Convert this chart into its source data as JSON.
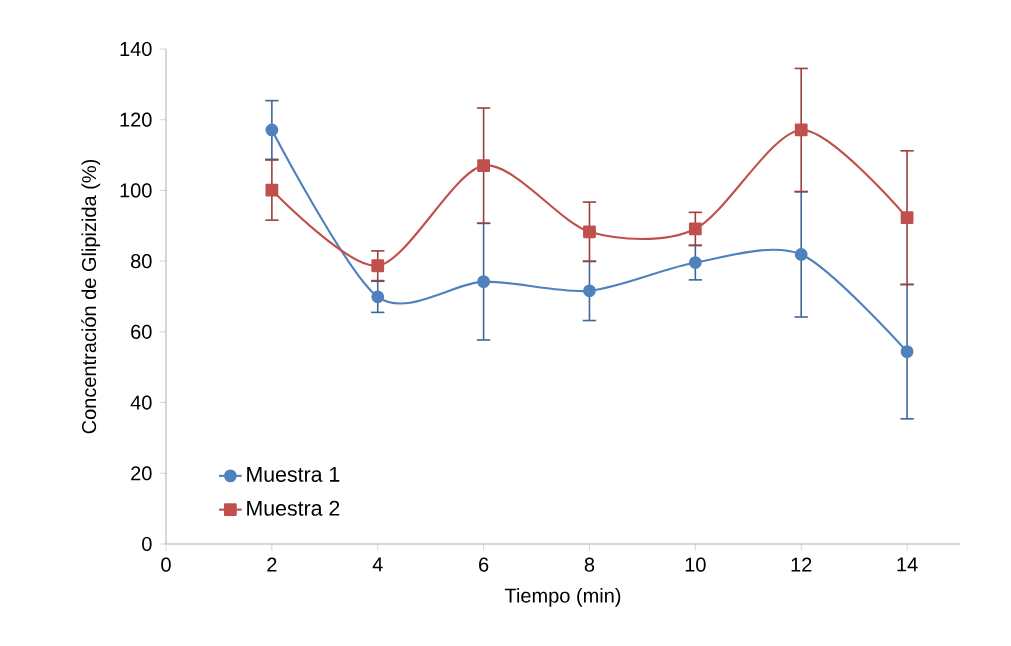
{
  "chart_data": {
    "type": "line",
    "xlabel": "Tiempo (min)",
    "ylabel": "Concentración de Glipizida (%)",
    "x": [
      2,
      4,
      6,
      8,
      10,
      12,
      14
    ],
    "series": [
      {
        "name": "Muestra 1",
        "color": "#4f81bd",
        "marker": "circle",
        "values": [
          117.1,
          69.9,
          74.2,
          71.6,
          79.6,
          81.9,
          54.4
        ],
        "errors": [
          8.3,
          4.4,
          16.5,
          8.4,
          4.9,
          17.7,
          19.0
        ]
      },
      {
        "name": "Muestra 2",
        "color": "#c0504d",
        "marker": "square",
        "values": [
          100.1,
          78.7,
          107.0,
          88.3,
          89.1,
          117.1,
          92.3
        ],
        "errors": [
          8.5,
          4.2,
          16.3,
          8.4,
          4.7,
          17.4,
          18.9
        ]
      }
    ],
    "xlim": [
      0,
      15
    ],
    "xticks": [
      0,
      2,
      4,
      6,
      8,
      10,
      12,
      14
    ],
    "ylim": [
      0,
      140
    ],
    "yticks": [
      0,
      20,
      40,
      60,
      80,
      100,
      120,
      140
    ],
    "grid": false,
    "legend": "bottom left",
    "line_style": "solid"
  }
}
